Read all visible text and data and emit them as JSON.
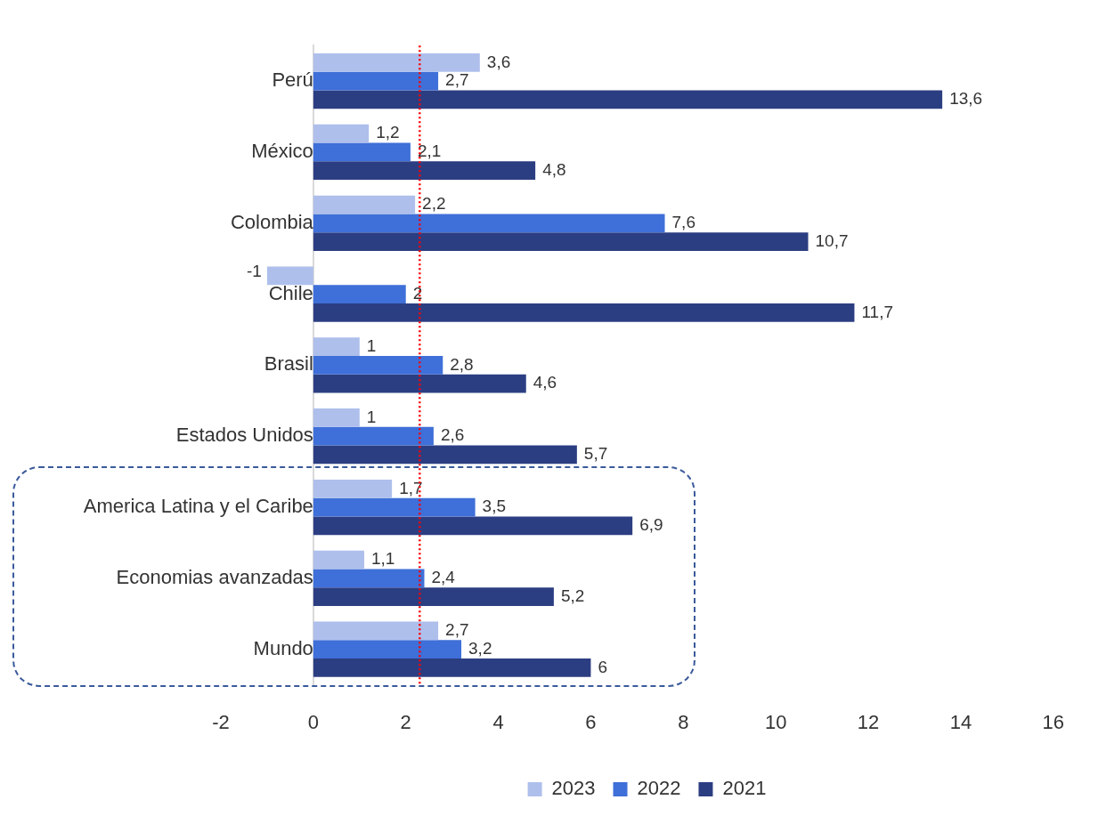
{
  "chart_data": {
    "type": "bar",
    "orientation": "horizontal",
    "categories": [
      "Perú",
      "México",
      "Colombia",
      "Chile",
      "Brasil",
      "Estados Unidos",
      "America Latina y el Caribe",
      "Economias avanzadas",
      "Mundo"
    ],
    "series": [
      {
        "name": "2023",
        "color": "#aebfec",
        "values": [
          3.6,
          1.2,
          2.2,
          -1,
          1,
          1,
          1.7,
          1.1,
          2.7
        ],
        "value_labels": [
          "3,6",
          "1,2",
          "2,2",
          "-1",
          "1",
          "1",
          "1,7",
          "1,1",
          "2,7"
        ]
      },
      {
        "name": "2022",
        "color": "#3f6fd8",
        "values": [
          2.7,
          2.1,
          7.6,
          2,
          2.8,
          2.6,
          3.5,
          2.4,
          3.2
        ],
        "value_labels": [
          "2,7",
          "2,1",
          "7,6",
          "2",
          "2,8",
          "2,6",
          "3,5",
          "2,4",
          "3,2"
        ]
      },
      {
        "name": "2021",
        "color": "#2c3e82",
        "values": [
          13.6,
          4.8,
          10.7,
          11.7,
          4.6,
          5.7,
          6.9,
          5.2,
          6
        ],
        "value_labels": [
          "13,6",
          "4,8",
          "10,7",
          "11,7",
          "4,6",
          "5,7",
          "6,9",
          "5,2",
          "6"
        ]
      }
    ],
    "xlim": [
      -2,
      16
    ],
    "xticks": [
      -2,
      0,
      2,
      4,
      6,
      8,
      10,
      12,
      14,
      16
    ],
    "ref_lines": [
      {
        "axis": "x",
        "value": 2.3,
        "color": "#ff0000",
        "line_style": "dotted"
      }
    ],
    "grid": false,
    "legend": "bottom"
  }
}
